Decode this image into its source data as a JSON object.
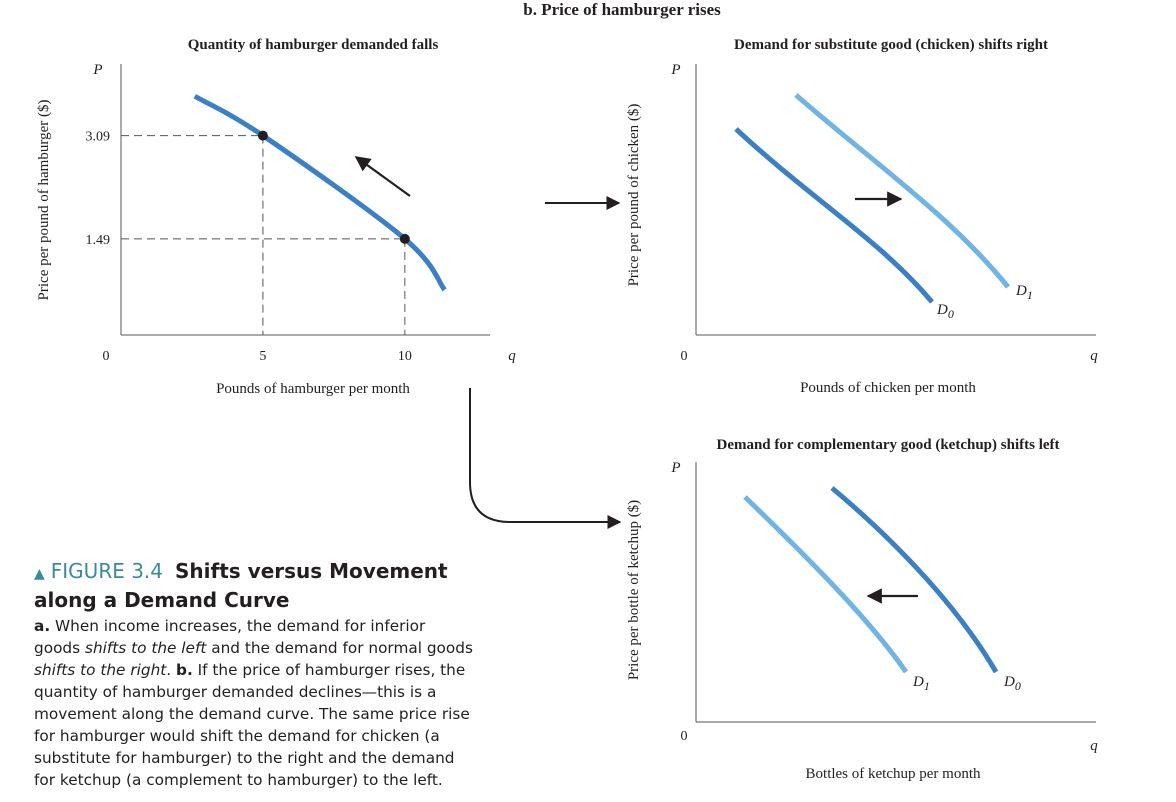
{
  "figure": {
    "number": "FIGURE 3.4",
    "title": "Shifts versus Movement along a Demand Curve",
    "panel_b_title": "b. Price of hamburger rises"
  },
  "caption": {
    "a_label": "a.",
    "a_text1": " When income increases, the demand for inferior goods ",
    "a_italic1": "shifts to the left",
    "a_text2": " and the demand for normal goods ",
    "a_italic2": "shifts to the right",
    "a_text3": ". ",
    "b_label": "b.",
    "b_text": " If the price of hamburger rises, the quantity of hamburger demanded declines—this is a movement along the demand curve. The same price rise for hamburger would shift the demand for chicken (a substitute for hamburger) to the right and the demand for ketchup (a complement to hamburger) to the left."
  },
  "colors": {
    "curve_dark": "#3b7fc4",
    "curve_light": "#6fb4e3",
    "axis": "#231f20",
    "caption_accent": "#3a8a9a"
  },
  "chart_data": [
    {
      "type": "line",
      "id": "hamburger",
      "title": "Quantity of hamburger demanded falls",
      "xlabel": "Pounds of hamburger per month",
      "ylabel": "Price per pound of hamburger ($)",
      "x_axis_letter": "q",
      "y_axis_letter": "P",
      "origin_label": "0",
      "xticks": [
        5,
        10
      ],
      "yticks": [
        1.49,
        3.09
      ],
      "xlim": [
        0,
        13
      ],
      "ylim": [
        0,
        4.2
      ],
      "series": [
        {
          "x": [
            2.6,
            5,
            10,
            11.4
          ],
          "y": [
            3.7,
            3.09,
            1.49,
            0.7
          ]
        }
      ],
      "points": [
        {
          "x": 5,
          "y": 3.09
        },
        {
          "x": 10,
          "y": 1.49
        }
      ],
      "annotation": "arrow along curve toward higher price, lower quantity"
    },
    {
      "type": "line",
      "id": "chicken",
      "title": "Demand for substitute good (chicken) shifts right",
      "xlabel": "Pounds of chicken per month",
      "ylabel": "Price per pound of chicken ($)",
      "x_axis_letter": "q",
      "y_axis_letter": "P",
      "origin_label": "0",
      "series": [
        {
          "name": "D0",
          "tone": "dark"
        },
        {
          "name": "D1",
          "tone": "light"
        }
      ],
      "shift": "right"
    },
    {
      "type": "line",
      "id": "ketchup",
      "title": "Demand for complementary good (ketchup) shifts left",
      "xlabel": "Bottles of ketchup per month",
      "ylabel": "Price per bottle of ketchup ($)",
      "x_axis_letter": "q",
      "y_axis_letter": "P",
      "origin_label": "0",
      "series": [
        {
          "name": "D0",
          "tone": "dark"
        },
        {
          "name": "D1",
          "tone": "light"
        }
      ],
      "shift": "left"
    }
  ]
}
